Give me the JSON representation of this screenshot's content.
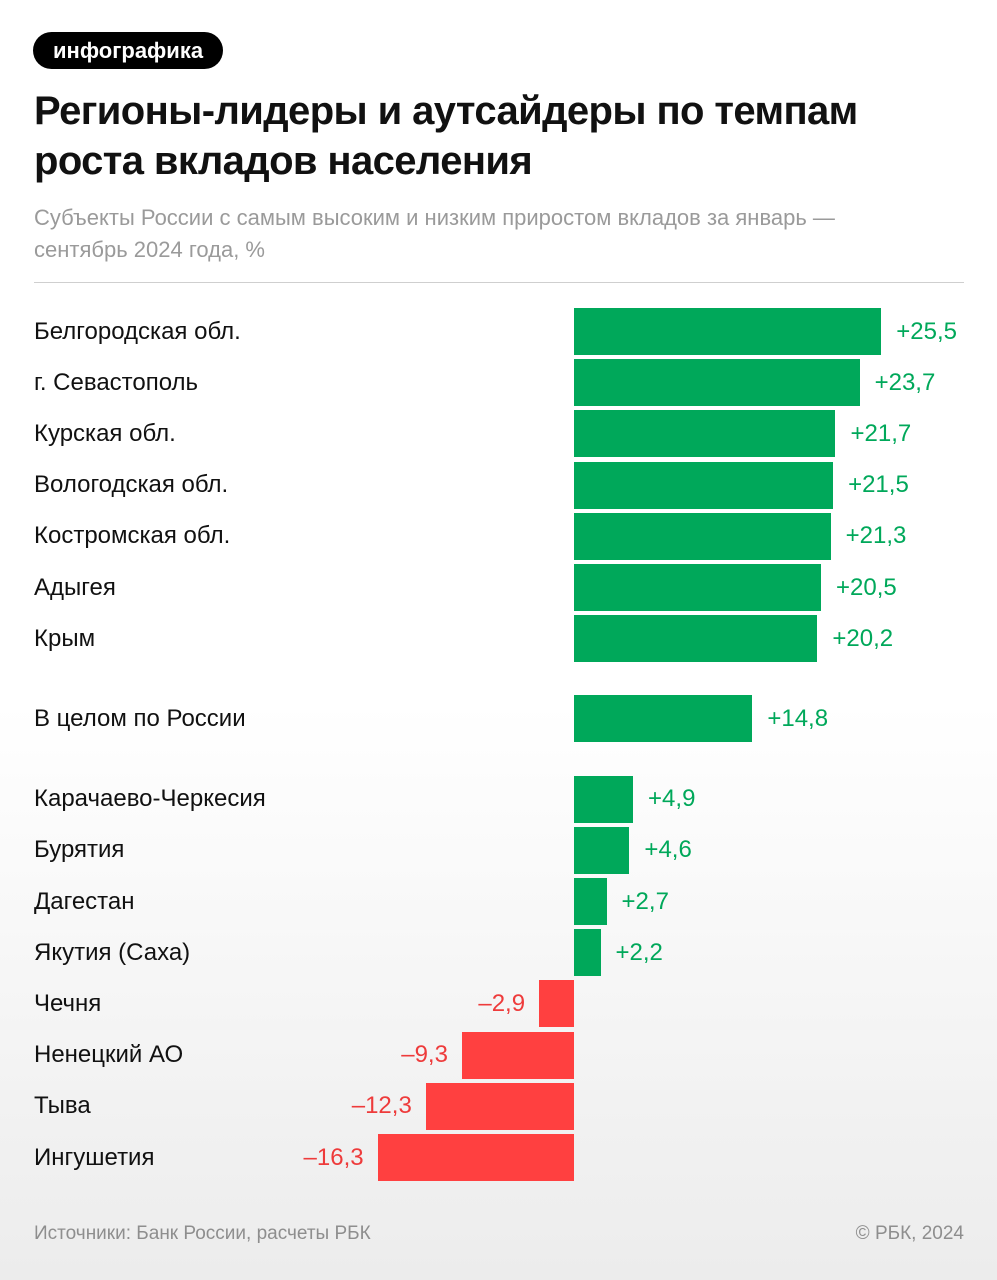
{
  "badge": "инфографика",
  "title": "Регионы-лидеры и аутсайдеры по темпам роста вкладов населения",
  "subtitle": "Субъекты России с самым высоким и низким приростом вкладов за январь — сентябрь 2024 года, %",
  "footer": {
    "source": "Источники: Банк России, расчеты РБК",
    "copyright": "© РБК, 2024"
  },
  "colors": {
    "positive": "#00a85a",
    "negative": "#ff4040",
    "positive_text": "#00a85a",
    "negative_text": "#ee3b3b"
  },
  "chart_data": {
    "type": "bar",
    "orientation": "horizontal",
    "groups": [
      {
        "items": [
          {
            "category": "Белгородская обл.",
            "value": 25.5,
            "label": "+25,5"
          },
          {
            "category": "г. Севастополь",
            "value": 23.7,
            "label": "+23,7"
          },
          {
            "category": "Курская обл.",
            "value": 21.7,
            "label": "+21,7"
          },
          {
            "category": "Вологодская обл.",
            "value": 21.5,
            "label": "+21,5"
          },
          {
            "category": "Костромская обл.",
            "value": 21.3,
            "label": "+21,3"
          },
          {
            "category": "Адыгея",
            "value": 20.5,
            "label": "+20,5"
          },
          {
            "category": "Крым",
            "value": 20.2,
            "label": "+20,2"
          }
        ]
      },
      {
        "items": [
          {
            "category": "В целом по России",
            "value": 14.8,
            "label": "+14,8"
          }
        ]
      },
      {
        "items": [
          {
            "category": "Карачаево-Черкесия",
            "value": 4.9,
            "label": "+4,9"
          },
          {
            "category": "Бурятия",
            "value": 4.6,
            "label": "+4,6"
          },
          {
            "category": "Дагестан",
            "value": 2.7,
            "label": "+2,7"
          },
          {
            "category": "Якутия (Саха)",
            "value": 2.2,
            "label": "+2,2"
          },
          {
            "category": "Чечня",
            "value": -2.9,
            "label": "–2,9"
          },
          {
            "category": "Ненецкий АО",
            "value": -9.3,
            "label": "–9,3"
          },
          {
            "category": "Тыва",
            "value": -12.3,
            "label": "–12,3"
          },
          {
            "category": "Ингушетия",
            "value": -16.3,
            "label": "–16,3"
          }
        ]
      }
    ],
    "xlim": [
      -16.3,
      25.5
    ],
    "grid": false,
    "legend": "none"
  }
}
